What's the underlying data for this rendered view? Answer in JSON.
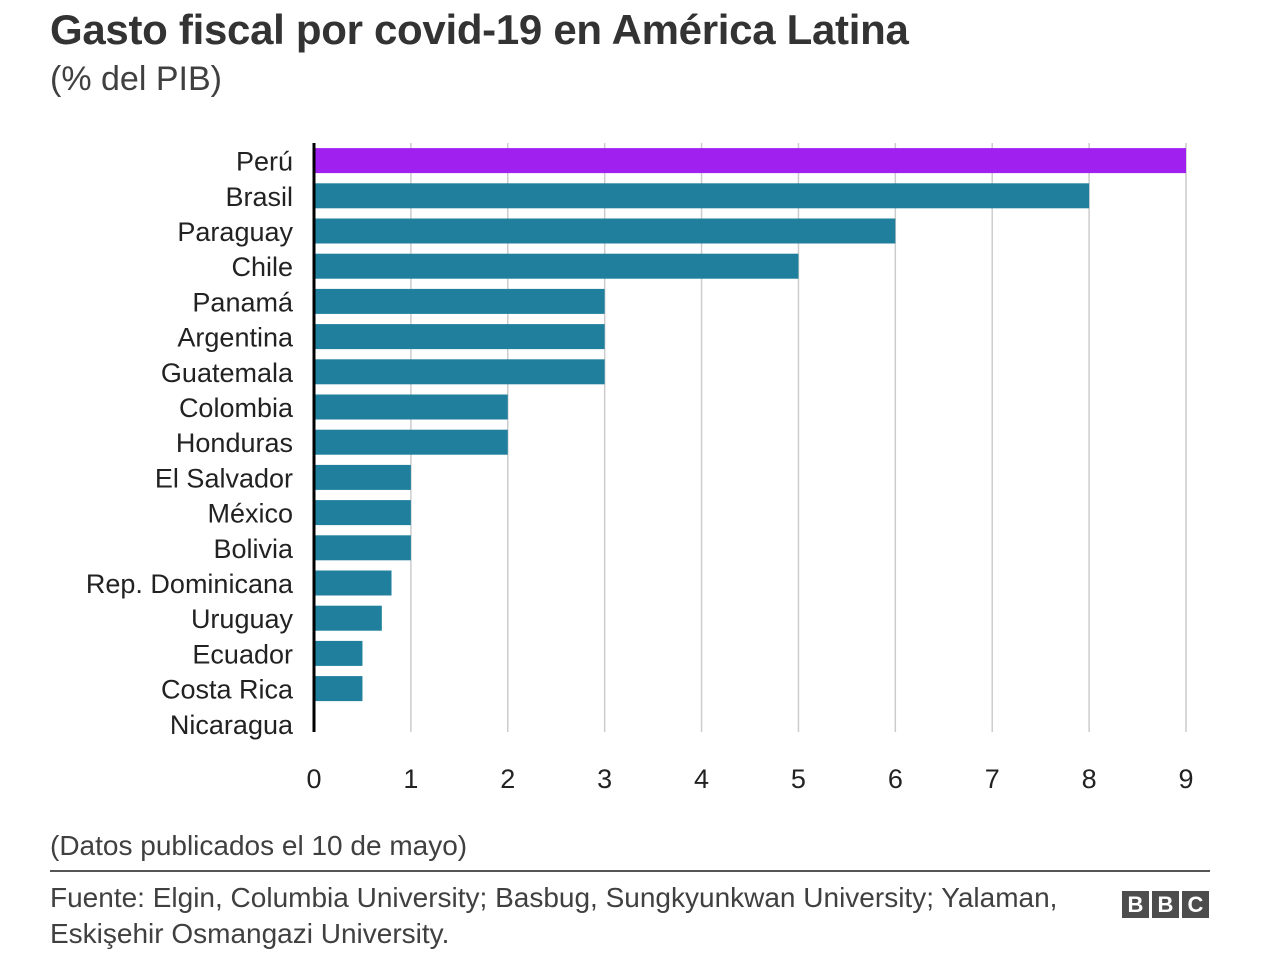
{
  "chart_data": {
    "type": "bar",
    "orientation": "horizontal",
    "title": "Gasto fiscal por covid-19 en América Latina",
    "subtitle": "(% del PIB)",
    "xlabel": "",
    "ylabel": "",
    "xlim": [
      0,
      9
    ],
    "xticks": [
      "0",
      "1",
      "2",
      "3",
      "4",
      "5",
      "6",
      "7",
      "8",
      "9"
    ],
    "grid": true,
    "categories": [
      "Perú",
      "Brasil",
      "Paraguay",
      "Chile",
      "Panamá",
      "Argentina",
      "Guatemala",
      "Colombia",
      "Honduras",
      "El Salvador",
      "México",
      "Bolivia",
      "Rep. Dominicana",
      "Uruguay",
      "Ecuador",
      "Costa Rica",
      "Nicaragua"
    ],
    "values": [
      9,
      8,
      6,
      5,
      3,
      3,
      3,
      2,
      2,
      1,
      1,
      1,
      0.8,
      0.7,
      0.5,
      0.5,
      0
    ],
    "highlight": "Perú",
    "colors": {
      "default": "#1f7f9c",
      "highlight": "#a020f0",
      "grid": "#cccccc",
      "axis": "#000000"
    },
    "note": "(Datos publicados el 10 de mayo)",
    "source": "Fuente: Elgin, Columbia University; Basbug, Sungkyunkwan University; Yalaman, Eskişehir Osmangazi University."
  },
  "logo": [
    "B",
    "B",
    "C"
  ]
}
